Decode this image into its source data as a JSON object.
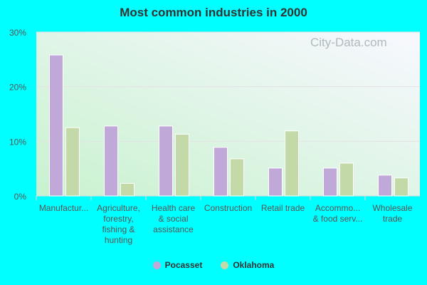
{
  "chart_data": {
    "type": "bar",
    "title": "Most common industries in 2000",
    "categories": [
      [
        "Manufactur..."
      ],
      [
        "Agriculture,",
        "forestry,",
        "fishing &",
        "hunting"
      ],
      [
        "Health care",
        "& social",
        "assistance"
      ],
      [
        "Construction"
      ],
      [
        "Retail trade"
      ],
      [
        "Accommo...",
        "& food serv..."
      ],
      [
        "Wholesale",
        "trade"
      ]
    ],
    "series": [
      {
        "name": "Pocasset",
        "color": "#c0a8d8",
        "values": [
          25.8,
          12.8,
          12.8,
          8.9,
          5.1,
          5.1,
          3.8
        ]
      },
      {
        "name": "Oklahoma",
        "color": "#c4d9a8",
        "values": [
          12.5,
          2.3,
          11.3,
          6.8,
          11.9,
          6.0,
          3.3
        ]
      }
    ],
    "ylim": [
      0,
      30
    ],
    "yticks": [
      "0%",
      "10%",
      "20%",
      "30%"
    ],
    "grid": true,
    "legend_placement": "bottom",
    "watermark": "City-Data.com"
  }
}
